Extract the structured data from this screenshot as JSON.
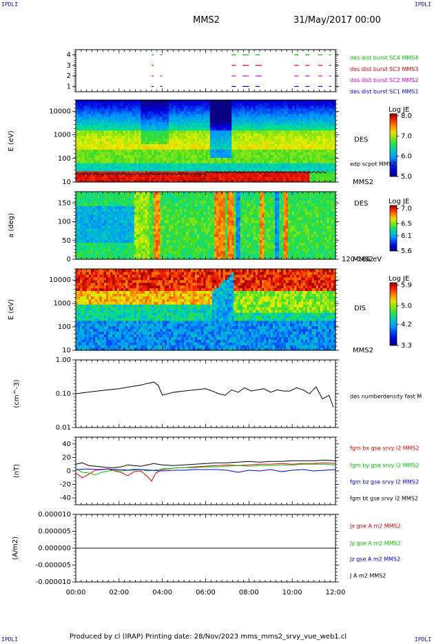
{
  "header": {
    "corner_tl": "IPDLI",
    "corner_tr": "IPDLI",
    "corner_bl": "IPDLI",
    "corner_br": "IPDLI",
    "spacecraft": "MMS2",
    "datetime": "31/May/2017 00:00"
  },
  "footer": {
    "text": "Produced by cl (IRAP)   Printing date: 28/Nov/2023   mms_mms2_srvy_vue_web1.cl"
  },
  "colors": {
    "red": "#e00000",
    "green": "#00c000",
    "blue": "#0000e0",
    "magenta": "#e000e0",
    "black": "#000000"
  },
  "chart_data": [
    {
      "type": "line",
      "panel": "burst-availability",
      "y_ticks": [
        "1",
        "2",
        "3",
        "4"
      ],
      "ylim": [
        0.5,
        4.5
      ],
      "xlim_hours": [
        0,
        12
      ],
      "series": [
        {
          "name": "des dist burst SC1 MMS1",
          "color": "#0000e0",
          "level": 1,
          "segments": [
            [
              3.5,
              3.6
            ],
            [
              3.9,
              4.0
            ],
            [
              7.2,
              7.4
            ],
            [
              7.7,
              8.0
            ],
            [
              8.3,
              8.5
            ],
            [
              10.1,
              10.3
            ],
            [
              10.6,
              10.8
            ],
            [
              11.2,
              11.4
            ],
            [
              11.7,
              11.8
            ]
          ]
        },
        {
          "name": "des dist burst SC2 MMS2",
          "color": "#e000e0",
          "level": 2,
          "segments": [
            [
              3.5,
              3.6
            ],
            [
              3.9,
              4.0
            ],
            [
              7.2,
              7.4
            ],
            [
              7.7,
              8.0
            ],
            [
              8.3,
              8.6
            ],
            [
              10.1,
              10.3
            ],
            [
              10.6,
              10.8
            ],
            [
              11.2,
              11.4
            ],
            [
              11.7,
              11.8
            ]
          ]
        },
        {
          "name": "des dist burst SC3 MMS3",
          "color": "#e00000",
          "level": 3,
          "segments": [
            [
              3.5,
              3.6
            ],
            [
              7.2,
              7.4
            ],
            [
              7.7,
              8.0
            ],
            [
              8.3,
              8.6
            ],
            [
              10.1,
              10.3
            ],
            [
              10.6,
              10.8
            ],
            [
              11.2,
              11.4
            ],
            [
              11.7,
              11.8
            ]
          ]
        },
        {
          "name": "des dist burst SC4 MMS4",
          "color": "#00c000",
          "level": 4,
          "segments": [
            [
              3.5,
              3.6
            ],
            [
              3.9,
              4.0
            ],
            [
              7.2,
              7.4
            ],
            [
              7.7,
              8.0
            ],
            [
              8.3,
              8.5
            ],
            [
              10.1,
              10.3
            ],
            [
              10.6,
              10.8
            ],
            [
              11.2,
              11.4
            ],
            [
              11.7,
              11.8
            ]
          ]
        }
      ]
    },
    {
      "type": "heatmap",
      "panel": "des-energy",
      "ylabel": "E (eV)",
      "y_ticks": [
        "10",
        "100",
        "1000",
        "10000"
      ],
      "yscale": "log",
      "ylim": [
        10,
        30000
      ],
      "xlim_hours": [
        0,
        12
      ],
      "instrument": "DES",
      "spacecraft": "MMS2",
      "colorbar": {
        "title": "Log JE",
        "ticks": [
          "5.0",
          "6.0",
          "7.0",
          "8.0"
        ],
        "range": [
          5.0,
          8.1
        ]
      },
      "overlay": {
        "name": "edp scpot MMS2",
        "color": "#000000"
      }
    },
    {
      "type": "heatmap",
      "panel": "des-pitch-angle",
      "ylabel": "a (deg)",
      "y_ticks": [
        "0",
        "50",
        "100",
        "150"
      ],
      "ylim": [
        0,
        180
      ],
      "xlim_hours": [
        0,
        12
      ],
      "instrument": "DES",
      "spacecraft": "MMS2",
      "energy_band": "120-166 eV",
      "colorbar": {
        "title": "Log JE",
        "ticks": [
          "5.6",
          "6.1",
          "6.5",
          "7.0"
        ],
        "range": [
          5.6,
          7.1
        ]
      }
    },
    {
      "type": "heatmap",
      "panel": "dis-energy",
      "ylabel": "E (eV)",
      "y_ticks": [
        "10",
        "100",
        "1000",
        "10000"
      ],
      "yscale": "log",
      "ylim": [
        10,
        30000
      ],
      "xlim_hours": [
        0,
        12
      ],
      "instrument": "DIS",
      "spacecraft": "MMS2",
      "colorbar": {
        "title": "Log JE",
        "ticks": [
          "3.3",
          "4.2",
          "5.0",
          "5.9"
        ],
        "range": [
          3.3,
          6.0
        ]
      }
    },
    {
      "type": "line",
      "panel": "density",
      "ylabel": "(cm^-3)",
      "y_ticks": [
        "0.01",
        "0.10",
        "1.00"
      ],
      "yscale": "log",
      "ylim": [
        0.01,
        1.0
      ],
      "xlim_hours": [
        0,
        12
      ],
      "series": [
        {
          "name": "des numberdensity fast M",
          "color": "#000000",
          "x": [
            0.0,
            0.5,
            1.0,
            1.5,
            2.0,
            2.5,
            3.0,
            3.3,
            3.6,
            3.8,
            4.0,
            4.5,
            5.0,
            5.5,
            6.0,
            6.3,
            6.6,
            6.9,
            7.2,
            7.5,
            7.8,
            8.1,
            8.4,
            8.7,
            9.0,
            9.3,
            9.6,
            9.9,
            10.2,
            10.5,
            10.8,
            11.1,
            11.4,
            11.7,
            11.9
          ],
          "y": [
            0.1,
            0.11,
            0.12,
            0.13,
            0.14,
            0.16,
            0.18,
            0.2,
            0.22,
            0.18,
            0.09,
            0.11,
            0.12,
            0.13,
            0.14,
            0.12,
            0.1,
            0.09,
            0.13,
            0.11,
            0.15,
            0.12,
            0.13,
            0.14,
            0.11,
            0.13,
            0.12,
            0.12,
            0.15,
            0.13,
            0.1,
            0.16,
            0.07,
            0.09,
            0.04
          ]
        }
      ]
    },
    {
      "type": "line",
      "panel": "magnetic-field",
      "ylabel": "(nT)",
      "y_ticks": [
        "-40",
        "-20",
        "0",
        "20",
        "40"
      ],
      "ylim": [
        -50,
        50
      ],
      "xlim_hours": [
        0,
        12
      ],
      "series": [
        {
          "name": "fgm bx gse srvy l2 MMS2",
          "color": "#e00000",
          "x": [
            0.0,
            0.3,
            0.6,
            0.9,
            1.2,
            1.5,
            1.8,
            2.1,
            2.4,
            2.7,
            3.0,
            3.3,
            3.5,
            3.7,
            4.0,
            4.5,
            5.0,
            5.5,
            6.0,
            6.5,
            7.0,
            7.5,
            8.0,
            8.5,
            9.0,
            9.5,
            10.0,
            10.5,
            11.0,
            11.5,
            12.0
          ],
          "y": [
            -3,
            -10,
            -5,
            1,
            2,
            3,
            0,
            -2,
            -7,
            -1,
            0,
            -8,
            -15,
            -3,
            2,
            4,
            5,
            6,
            7,
            8,
            9,
            8,
            9,
            10,
            10,
            11,
            10,
            11,
            11,
            12,
            11
          ]
        },
        {
          "name": "fgm by gse srvy l2 MMS2",
          "color": "#00c000",
          "x": [
            0.0,
            0.3,
            0.6,
            0.9,
            1.2,
            1.5,
            1.8,
            2.1,
            2.4,
            2.7,
            3.0,
            3.3,
            3.6,
            4.0,
            4.5,
            5.0,
            5.5,
            6.0,
            6.5,
            7.0,
            7.5,
            8.0,
            8.5,
            9.0,
            9.5,
            10.0,
            10.5,
            11.0,
            11.5,
            12.0
          ],
          "y": [
            3,
            -2,
            -3,
            -6,
            -2,
            0,
            1,
            0,
            1,
            3,
            2,
            0,
            1,
            3,
            4,
            5,
            5,
            6,
            6,
            7,
            8,
            7,
            8,
            8,
            9,
            9,
            10,
            10,
            10,
            9
          ]
        },
        {
          "name": "fgm bz gse srvy l2 MMS2",
          "color": "#0000e0",
          "x": [
            0.0,
            0.5,
            1.0,
            1.5,
            2.0,
            2.5,
            3.0,
            3.5,
            4.0,
            4.5,
            5.0,
            5.5,
            6.0,
            6.5,
            7.0,
            7.5,
            8.0,
            8.5,
            9.0,
            9.5,
            10.0,
            10.5,
            11.0,
            11.5,
            12.0
          ],
          "y": [
            2,
            3,
            2,
            3,
            2,
            1,
            2,
            1,
            0,
            1,
            1,
            2,
            2,
            2,
            1,
            -2,
            1,
            0,
            2,
            -1,
            1,
            2,
            0,
            1,
            2
          ]
        },
        {
          "name": "fgm bt gse srvy l2 MMS2",
          "color": "#000000",
          "x": [
            0.0,
            0.3,
            0.6,
            0.9,
            1.2,
            1.5,
            1.8,
            2.1,
            2.4,
            2.7,
            3.0,
            3.3,
            3.6,
            4.0,
            4.5,
            5.0,
            5.5,
            6.0,
            6.5,
            7.0,
            7.5,
            8.0,
            8.5,
            9.0,
            9.5,
            10.0,
            10.5,
            11.0,
            11.5,
            12.0
          ],
          "y": [
            10,
            12,
            8,
            7,
            6,
            5,
            5,
            6,
            9,
            8,
            7,
            9,
            11,
            9,
            8,
            9,
            10,
            11,
            12,
            12,
            13,
            14,
            13,
            14,
            14,
            15,
            15,
            15,
            16,
            15
          ]
        }
      ]
    },
    {
      "type": "line",
      "panel": "current-density",
      "ylabel": "(A/m2)",
      "y_ticks": [
        "-0.000010",
        "-0.000005",
        "0.000000",
        "0.000005",
        "0.000010"
      ],
      "ylim": [
        -1e-05,
        1e-05
      ],
      "xlim_hours": [
        0,
        12
      ],
      "x_ticks": [
        "00:00",
        "02:00",
        "04:00",
        "06:00",
        "08:00",
        "10:00",
        "12:00"
      ],
      "series": [
        {
          "name": "Jx gse A m2 MMS2",
          "color": "#e00000",
          "x": [
            0,
            12
          ],
          "y": [
            0,
            0
          ]
        },
        {
          "name": "Jy gse A m2 MMS2",
          "color": "#00c000",
          "x": [
            0,
            12
          ],
          "y": [
            0,
            0
          ]
        },
        {
          "name": "Jz gse A m2 MMS2",
          "color": "#0000e0",
          "x": [
            0,
            12
          ],
          "y": [
            0,
            0
          ]
        },
        {
          "name": "J A m2 MMS2",
          "color": "#000000",
          "x": [
            0,
            12
          ],
          "y": [
            0,
            0
          ]
        }
      ]
    }
  ]
}
